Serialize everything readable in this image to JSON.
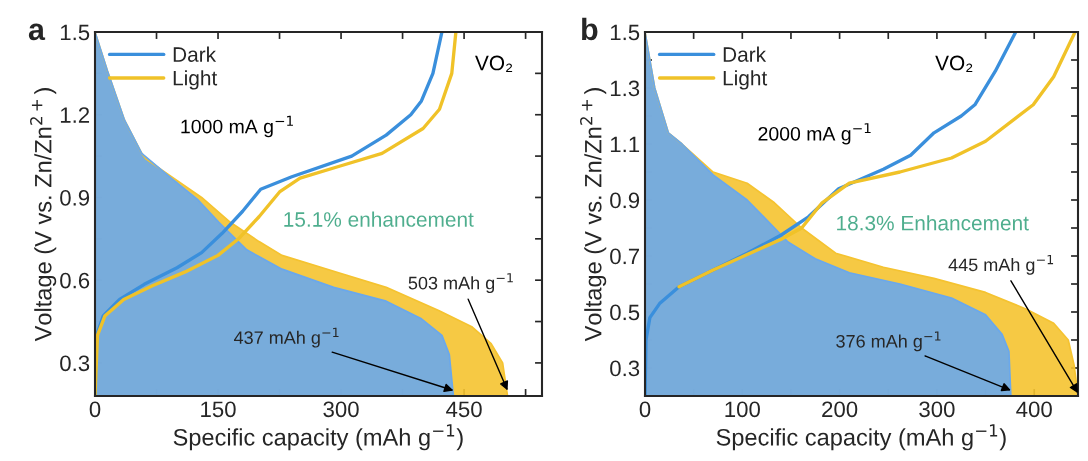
{
  "chart_data": [
    {
      "type": "line",
      "title": "a",
      "xlabel": "Specific capacity (mAh g$^{−1}$)",
      "ylabel": "Voltage (V vs. Zn/Zn$^{2+}$)",
      "xlim": [
        0,
        545
      ],
      "xticks": [
        0,
        {
          "value": 75,
          "label": null
        },
        150,
        {
          "value": 225,
          "label": null
        },
        300,
        {
          "value": 375,
          "label": null
        },
        450,
        {
          "value": 525,
          "label": null
        }
      ],
      "ylim": [
        0.18,
        1.5
      ],
      "yticks": [
        0.3,
        {
          "value": 0.45,
          "label": null
        },
        0.6,
        {
          "value": 0.75,
          "label": null
        },
        0.9,
        {
          "value": 1.05,
          "label": null
        },
        1.2,
        {
          "value": 1.35,
          "label": null
        },
        1.5
      ],
      "legend": "top left",
      "series": [
        {
          "type": "area",
          "color": "#f5c330",
          "x": [
            0,
            15,
            36,
            57,
            62,
            91,
            130,
            165,
            200,
            228,
            300,
            355,
            419,
            460,
            483,
            497,
            503
          ],
          "values": [
            1.5,
            1.36,
            1.18,
            1.06,
            1.04,
            0.98,
            0.9,
            0.81,
            0.74,
            0.69,
            0.624,
            0.574,
            0.49,
            0.43,
            0.37,
            0.3,
            0.18
          ]
        },
        {
          "type": "area",
          "color": "#6aa8ec",
          "x": [
            0,
            15,
            36,
            57,
            91,
            126,
            151,
            185,
            228,
            291,
            355,
            398,
            423,
            432,
            437
          ],
          "values": [
            1.5,
            1.36,
            1.18,
            1.06,
            0.975,
            0.89,
            0.81,
            0.71,
            0.64,
            0.574,
            0.524,
            0.46,
            0.4,
            0.33,
            0.18
          ]
        },
        {
          "name": "Dark",
          "color": "#3a8fdc",
          "x": [
            0,
            2,
            10,
            30,
            60,
            100,
            130,
            155,
            180,
            202,
            240,
            313,
            355,
            385,
            398,
            412,
            423
          ],
          "values": [
            0.18,
            0.4,
            0.47,
            0.53,
            0.585,
            0.645,
            0.7,
            0.77,
            0.85,
            0.93,
            0.975,
            1.05,
            1.126,
            1.2,
            1.25,
            1.35,
            1.5
          ]
        },
        {
          "name": "Light",
          "color": "#f0c228",
          "x": [
            0,
            3,
            12,
            35,
            70,
            110,
            150,
            175,
            200,
            225,
            250,
            300,
            350,
            400,
            420,
            435,
            440
          ],
          "values": [
            0.18,
            0.4,
            0.47,
            0.53,
            0.58,
            0.63,
            0.69,
            0.75,
            0.83,
            0.92,
            0.97,
            1.015,
            1.06,
            1.15,
            1.22,
            1.35,
            1.5
          ]
        }
      ],
      "annotations": [
        "VO₂",
        "1000 mA g$^{−1}$",
        "15.1% enhancement",
        {
          "text": "437 mAh g$^{−1}$",
          "x": 437,
          "y": 0.2
        },
        {
          "text": "503 mAh g$^{−1}$",
          "x": 503,
          "y": 0.2
        }
      ]
    },
    {
      "type": "line",
      "title": "b",
      "xlabel": "Specific capacity (mAh g$^{−1}$)",
      "ylabel": "Voltage (V vs. Zn/Zn$^{2+}$)",
      "xlim": [
        0,
        445
      ],
      "xticks": [
        0,
        {
          "value": 50,
          "label": null
        },
        100,
        {
          "value": 150,
          "label": null
        },
        200,
        {
          "value": 250,
          "label": null
        },
        300,
        {
          "value": 350,
          "label": null
        },
        400
      ],
      "ylim": [
        0.2,
        1.5
      ],
      "yticks": [
        0.3,
        {
          "value": 0.4,
          "label": null
        },
        0.5,
        {
          "value": 0.6,
          "label": null
        },
        0.7,
        {
          "value": 0.8,
          "label": null
        },
        0.9,
        {
          "value": 1.0,
          "label": null
        },
        1.1,
        {
          "value": 1.2,
          "label": null
        },
        1.3,
        {
          "value": 1.4,
          "label": null
        },
        1.5
      ],
      "legend": "top left",
      "series": [
        {
          "type": "area",
          "color": "#f5c330",
          "x": [
            0,
            10,
            24,
            38,
            70,
            105,
            133,
            161,
            196,
            245,
            297,
            350,
            392,
            420,
            435,
            441,
            445
          ],
          "values": [
            1.5,
            1.3,
            1.14,
            1.1,
            1.0,
            0.96,
            0.89,
            0.8,
            0.71,
            0.66,
            0.62,
            0.57,
            0.51,
            0.46,
            0.4,
            0.31,
            0.2
          ]
        },
        {
          "type": "area",
          "color": "#6aa8ec",
          "x": [
            0,
            10,
            24,
            38,
            70,
            105,
            122,
            147,
            175,
            210,
            262,
            315,
            350,
            367,
            374,
            376
          ],
          "values": [
            1.5,
            1.3,
            1.14,
            1.1,
            0.99,
            0.9,
            0.84,
            0.75,
            0.69,
            0.64,
            0.6,
            0.55,
            0.49,
            0.42,
            0.36,
            0.2
          ]
        },
        {
          "name": "Dark",
          "color": "#3a8fdc",
          "x": [
            0,
            1,
            5,
            15,
            35,
            70,
            105,
            140,
            168,
            199,
            245,
            273,
            297,
            325,
            339,
            360,
            381
          ],
          "values": [
            0.2,
            0.4,
            0.48,
            0.53,
            0.59,
            0.65,
            0.71,
            0.775,
            0.84,
            0.94,
            1.01,
            1.06,
            1.14,
            1.2,
            1.24,
            1.36,
            1.5
          ]
        },
        {
          "name": "Light",
          "color": "#f0c228",
          "x": [
            35,
            70,
            105,
            140,
            161,
            182,
            210,
            262,
            315,
            350,
            399,
            420,
            442
          ],
          "values": [
            0.59,
            0.65,
            0.705,
            0.76,
            0.8,
            0.89,
            0.96,
            1.0,
            1.05,
            1.11,
            1.24,
            1.34,
            1.5
          ]
        }
      ],
      "annotations": [
        "VO₂",
        "2000 mA g$^{−1}$",
        "18.3% Enhancement",
        {
          "text": "376 mAh g$^{−1}$",
          "x": 376,
          "y": 0.22
        },
        {
          "text": "445 mAh g$^{−1}$",
          "x": 445,
          "y": 0.21
        }
      ]
    }
  ]
}
